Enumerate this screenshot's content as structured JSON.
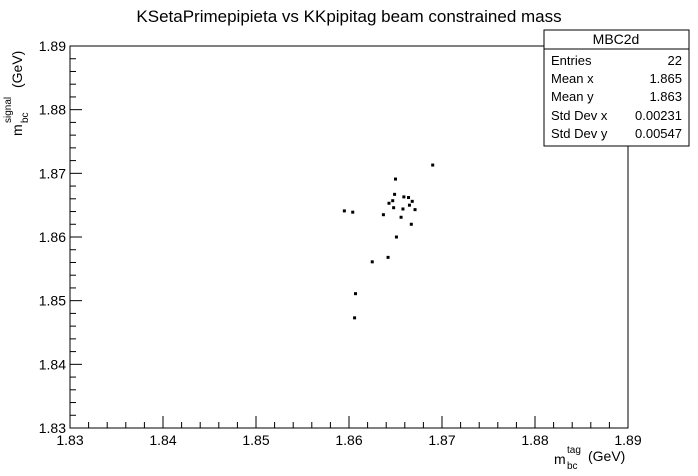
{
  "chart_data": {
    "type": "scatter",
    "title": "KSetaPrimepipieta vs KKpipitag beam constrained mass",
    "xlabel": {
      "main": "m",
      "sup": "tag",
      "sub": "bc",
      "unit": "(GeV)"
    },
    "ylabel": {
      "main": "m",
      "sup": "signal",
      "sub": "bc",
      "unit": "(GeV)"
    },
    "xlim": [
      1.83,
      1.89
    ],
    "ylim": [
      1.83,
      1.89
    ],
    "xticks": [
      1.83,
      1.84,
      1.85,
      1.86,
      1.87,
      1.88,
      1.89
    ],
    "yticks": [
      1.83,
      1.84,
      1.85,
      1.86,
      1.87,
      1.88,
      1.89
    ],
    "xtick_labels": [
      "1.83",
      "1.84",
      "1.85",
      "1.86",
      "1.87",
      "1.88",
      "1.89"
    ],
    "ytick_labels": [
      "1.83",
      "1.84",
      "1.85",
      "1.86",
      "1.87",
      "1.88",
      "1.89"
    ],
    "grid": false,
    "points": [
      {
        "x": 1.8595,
        "y": 1.8641
      },
      {
        "x": 1.8604,
        "y": 1.8639
      },
      {
        "x": 1.8607,
        "y": 1.8511
      },
      {
        "x": 1.8606,
        "y": 1.8473
      },
      {
        "x": 1.8625,
        "y": 1.8561
      },
      {
        "x": 1.8637,
        "y": 1.8635
      },
      {
        "x": 1.8642,
        "y": 1.8568
      },
      {
        "x": 1.8643,
        "y": 1.8653
      },
      {
        "x": 1.8647,
        "y": 1.8657
      },
      {
        "x": 1.8648,
        "y": 1.8646
      },
      {
        "x": 1.8649,
        "y": 1.8667
      },
      {
        "x": 1.865,
        "y": 1.8691
      },
      {
        "x": 1.8651,
        "y": 1.86
      },
      {
        "x": 1.8656,
        "y": 1.8631
      },
      {
        "x": 1.8658,
        "y": 1.8644
      },
      {
        "x": 1.8659,
        "y": 1.8663
      },
      {
        "x": 1.8664,
        "y": 1.8662
      },
      {
        "x": 1.8665,
        "y": 1.865
      },
      {
        "x": 1.8667,
        "y": 1.862
      },
      {
        "x": 1.8668,
        "y": 1.8656
      },
      {
        "x": 1.8671,
        "y": 1.8643
      },
      {
        "x": 1.869,
        "y": 1.8713
      }
    ]
  },
  "stats_box": {
    "name": "MBC2d",
    "rows": [
      {
        "label": "Entries",
        "value": "22"
      },
      {
        "label": "Mean x",
        "value": "1.865"
      },
      {
        "label": "Mean y",
        "value": "1.863"
      },
      {
        "label": "Std Dev x",
        "value": "0.00231"
      },
      {
        "label": "Std Dev y",
        "value": "0.00547"
      }
    ]
  }
}
